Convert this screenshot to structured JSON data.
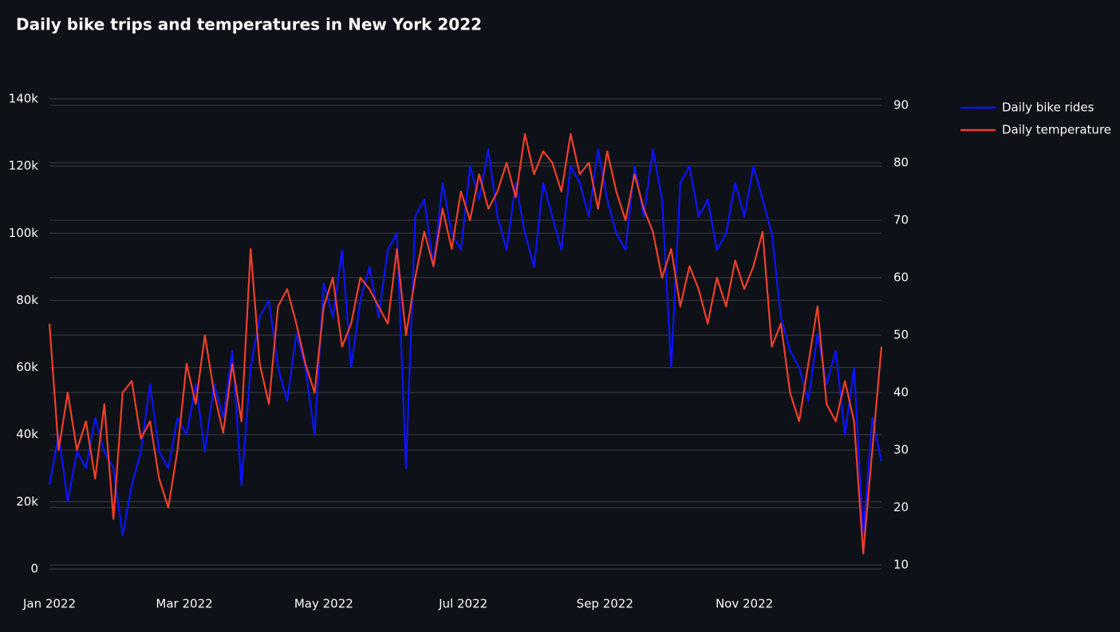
{
  "chart_data": {
    "type": "line",
    "title": "Daily bike trips and temperatures in New York 2022",
    "x": [
      0,
      4,
      8,
      12,
      16,
      20,
      24,
      28,
      32,
      36,
      40,
      44,
      48,
      52,
      56,
      60,
      64,
      68,
      72,
      76,
      80,
      84,
      88,
      92,
      96,
      100,
      104,
      108,
      112,
      116,
      120,
      124,
      128,
      132,
      136,
      140,
      144,
      148,
      152,
      156,
      160,
      164,
      168,
      172,
      176,
      180,
      184,
      188,
      192,
      196,
      200,
      204,
      208,
      212,
      216,
      220,
      224,
      228,
      232,
      236,
      240,
      244,
      248,
      252,
      256,
      260,
      264,
      268,
      272,
      276,
      280,
      284,
      288,
      292,
      296,
      300,
      304,
      308,
      312,
      316,
      320,
      324,
      328,
      332,
      336,
      340,
      344,
      348,
      352,
      356,
      360,
      364
    ],
    "xlim": [
      0,
      364
    ],
    "xticks": [
      {
        "value": 0,
        "label": "Jan 2022"
      },
      {
        "value": 59,
        "label": "Mar 2022"
      },
      {
        "value": 120,
        "label": "May 2022"
      },
      {
        "value": 181,
        "label": "Jul 2022"
      },
      {
        "value": 243,
        "label": "Sep 2022"
      },
      {
        "value": 304,
        "label": "Nov 2022"
      }
    ],
    "ylim": [
      0,
      140000
    ],
    "yticks": [
      0,
      {
        "value": 20000,
        "label": "20k"
      },
      {
        "value": 40000,
        "label": "40k"
      },
      {
        "value": 60000,
        "label": "60k"
      },
      {
        "value": 80000,
        "label": "80k"
      },
      {
        "value": 100000,
        "label": "100k"
      },
      {
        "value": 120000,
        "label": "120k"
      },
      {
        "value": 140000,
        "label": "140k"
      }
    ],
    "y2lim": [
      10,
      90
    ],
    "y2ticks": [
      10,
      20,
      30,
      40,
      50,
      60,
      70,
      80,
      90
    ],
    "grid": true,
    "legend": "top-right",
    "series": [
      {
        "name": "Daily bike rides",
        "color": "#0a14ff",
        "values": [
          25000,
          40000,
          20000,
          35000,
          30000,
          45000,
          35000,
          30000,
          10000,
          25000,
          35000,
          55000,
          35000,
          30000,
          45000,
          40000,
          55000,
          35000,
          55000,
          45000,
          65000,
          25000,
          60000,
          75000,
          80000,
          60000,
          50000,
          70000,
          60000,
          40000,
          85000,
          75000,
          95000,
          60000,
          80000,
          90000,
          75000,
          95000,
          100000,
          30000,
          105000,
          110000,
          90000,
          115000,
          100000,
          95000,
          120000,
          110000,
          125000,
          105000,
          95000,
          115000,
          100000,
          90000,
          115000,
          105000,
          95000,
          120000,
          115000,
          105000,
          125000,
          110000,
          100000,
          95000,
          120000,
          105000,
          125000,
          110000,
          60000,
          115000,
          120000,
          105000,
          110000,
          95000,
          100000,
          115000,
          105000,
          120000,
          110000,
          100000,
          75000,
          65000,
          60000,
          50000,
          70000,
          55000,
          65000,
          40000,
          60000,
          10000,
          45000,
          32000
        ]
      },
      {
        "name": "Daily temperature",
        "color": "#f0402a",
        "axis": "y2",
        "values": [
          52,
          30,
          40,
          30,
          35,
          25,
          38,
          18,
          40,
          42,
          32,
          35,
          25,
          20,
          30,
          45,
          38,
          50,
          40,
          33,
          45,
          35,
          65,
          45,
          38,
          55,
          58,
          52,
          45,
          40,
          55,
          60,
          48,
          52,
          60,
          58,
          55,
          52,
          65,
          50,
          60,
          68,
          62,
          72,
          65,
          75,
          70,
          78,
          72,
          75,
          80,
          74,
          85,
          78,
          82,
          80,
          75,
          85,
          78,
          80,
          72,
          82,
          75,
          70,
          78,
          72,
          68,
          60,
          65,
          55,
          62,
          58,
          52,
          60,
          55,
          63,
          58,
          62,
          68,
          48,
          52,
          40,
          35,
          45,
          55,
          38,
          35,
          42,
          35,
          12,
          30,
          48
        ]
      }
    ]
  }
}
